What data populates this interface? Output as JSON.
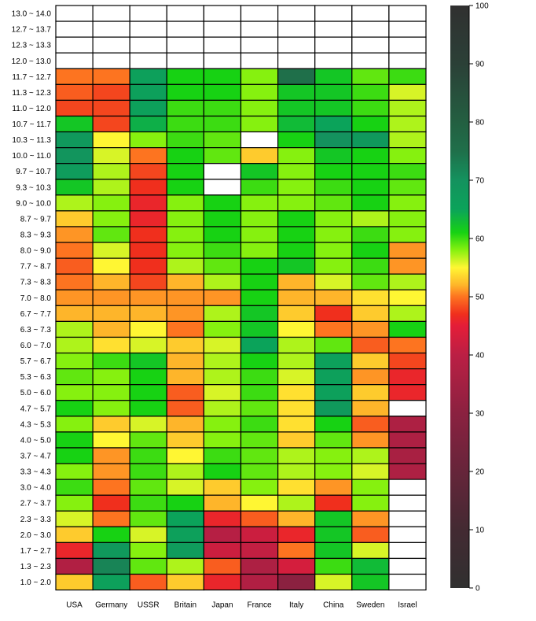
{
  "chart_data": {
    "type": "heatmap",
    "columns": [
      "USA",
      "Germany",
      "USSR",
      "Britain",
      "Japan",
      "France",
      "Italy",
      "China",
      "Sweden",
      "Israel"
    ],
    "rows": [
      "13.0 ~ 14.0",
      "12.7 ~ 13.7",
      "12.3 ~ 13.3",
      "12.0 ~ 13.0",
      "11.7 ~ 12.7",
      "11.3 ~ 12.3",
      "11.0 ~ 12.0",
      "10.7 ~ 11.7",
      "10.3 ~ 11.3",
      "10.0 ~ 11.0",
      "9.7 ~ 10.7",
      "9.3 ~ 10.3",
      "9.0 ~ 10.0",
      "8.7 ~ 9.7",
      "8.3 ~ 9.3",
      "8.0 ~ 9.0",
      "7.7 ~ 8.7",
      "7.3 ~ 8.3",
      "7.0 ~ 8.0",
      "6.7 ~ 7.7",
      "6.3 ~ 7.3",
      "6.0 ~ 7.0",
      "5.7 ~ 6.7",
      "5.3 ~ 6.3",
      "5.0 ~ 6.0",
      "4.7 ~ 5.7",
      "4.3 ~ 5.3",
      "4.0 ~ 5.0",
      "3.7 ~ 4.7",
      "3.3 ~ 4.3",
      "3.0 ~ 4.0",
      "2.7 ~ 3.7",
      "2.3 ~ 3.3",
      "2.0 ~ 3.0",
      "1.7 ~ 2.7",
      "1.3 ~ 2.3",
      "1.0 ~ 2.0"
    ],
    "values": [
      [
        null,
        null,
        null,
        null,
        null,
        null,
        null,
        null,
        null,
        null
      ],
      [
        null,
        null,
        null,
        null,
        null,
        null,
        null,
        null,
        null,
        null
      ],
      [
        null,
        null,
        null,
        null,
        null,
        null,
        null,
        null,
        null,
        null
      ],
      [
        null,
        null,
        null,
        null,
        null,
        null,
        null,
        null,
        null,
        null
      ],
      [
        50,
        50,
        66,
        61,
        61,
        58,
        75,
        62,
        59,
        60
      ],
      [
        49,
        48,
        66,
        61,
        61,
        58,
        62,
        62,
        60,
        56
      ],
      [
        48,
        48,
        66,
        60,
        60,
        58,
        62,
        62,
        60,
        57
      ],
      [
        62,
        48,
        64,
        60,
        60,
        58,
        63,
        65,
        61,
        57
      ],
      [
        68,
        55,
        58,
        60,
        59,
        null,
        61,
        70,
        68,
        57
      ],
      [
        69,
        56,
        50,
        61,
        59,
        53,
        58,
        62,
        61,
        58
      ],
      [
        67,
        57,
        48,
        61,
        null,
        62,
        58,
        61,
        61,
        60
      ],
      [
        62,
        57,
        47,
        61,
        null,
        60,
        58,
        60,
        61,
        59
      ],
      [
        57,
        58,
        46,
        58,
        61,
        58,
        58,
        59,
        61,
        58
      ],
      [
        53,
        58,
        46,
        58,
        61,
        58,
        61,
        58,
        57,
        58
      ],
      [
        51,
        59,
        47,
        58,
        61,
        58,
        61,
        58,
        60,
        58
      ],
      [
        50,
        56,
        47,
        58,
        60,
        58,
        61,
        58,
        61,
        51
      ],
      [
        49,
        55,
        47,
        57,
        59,
        61,
        62,
        58,
        60,
        51
      ],
      [
        50,
        52,
        48,
        52,
        57,
        61,
        52,
        56,
        59,
        57
      ],
      [
        51,
        51,
        51,
        51,
        51,
        61,
        52,
        52,
        54,
        55
      ],
      [
        52,
        52,
        52,
        51,
        57,
        62,
        53,
        47,
        53,
        57
      ],
      [
        57,
        52,
        55,
        50,
        58,
        62,
        55,
        50,
        51,
        61
      ],
      [
        57,
        54,
        56,
        53,
        56,
        65,
        57,
        59,
        49,
        50
      ],
      [
        58,
        60,
        62,
        52,
        57,
        61,
        57,
        66,
        53,
        48
      ],
      [
        59,
        58,
        61,
        52,
        57,
        60,
        56,
        66,
        51,
        46
      ],
      [
        58,
        58,
        61,
        49,
        56,
        60,
        54,
        66,
        53,
        46
      ],
      [
        61,
        58,
        61,
        49,
        57,
        59,
        54,
        68,
        52,
        null
      ],
      [
        58,
        53,
        56,
        52,
        58,
        60,
        54,
        61,
        49,
        37
      ],
      [
        61,
        55,
        59,
        53,
        58,
        59,
        53,
        59,
        51,
        37
      ],
      [
        61,
        51,
        60,
        55,
        60,
        59,
        57,
        58,
        57,
        36
      ],
      [
        58,
        51,
        60,
        57,
        61,
        59,
        57,
        58,
        56,
        37
      ],
      [
        60,
        50,
        59,
        56,
        53,
        58,
        54,
        51,
        58,
        null
      ],
      [
        58,
        47,
        60,
        61,
        52,
        55,
        57,
        47,
        58,
        null
      ],
      [
        56,
        50,
        59,
        65,
        46,
        49,
        52,
        62,
        51,
        null
      ],
      [
        53,
        61,
        56,
        66,
        39,
        42,
        46,
        62,
        49,
        null
      ],
      [
        46,
        68,
        58,
        67,
        42,
        41,
        50,
        62,
        56,
        null
      ],
      [
        38,
        72,
        59,
        57,
        49,
        37,
        43,
        60,
        63,
        null
      ],
      [
        53,
        66,
        49,
        53,
        46,
        38,
        30,
        56,
        62,
        null
      ]
    ],
    "colorbar": {
      "min": 0,
      "max": 100,
      "ticks": [
        "0",
        "10",
        "20",
        "30",
        "40",
        "50",
        "60",
        "70",
        "80",
        "90",
        "100"
      ],
      "stops": [
        {
          "v": 0,
          "c": "#303030"
        },
        {
          "v": 10,
          "c": "#432a32"
        },
        {
          "v": 20,
          "c": "#66253a"
        },
        {
          "v": 30,
          "c": "#8b2140"
        },
        {
          "v": 40,
          "c": "#bb1f44"
        },
        {
          "v": 45,
          "c": "#e41d38"
        },
        {
          "v": 47,
          "c": "#f02f1d"
        },
        {
          "v": 50,
          "c": "#fd7420"
        },
        {
          "v": 52,
          "c": "#feb52a"
        },
        {
          "v": 55,
          "c": "#fff633"
        },
        {
          "v": 58,
          "c": "#86f10f"
        },
        {
          "v": 61,
          "c": "#17d213"
        },
        {
          "v": 65,
          "c": "#0ba35a"
        },
        {
          "v": 70,
          "c": "#14925e"
        },
        {
          "v": 75,
          "c": "#1f6f4a"
        },
        {
          "v": 80,
          "c": "#235f41"
        },
        {
          "v": 90,
          "c": "#2b4037"
        },
        {
          "v": 100,
          "c": "#303030"
        }
      ]
    },
    "missing_color": "#ffffff"
  }
}
